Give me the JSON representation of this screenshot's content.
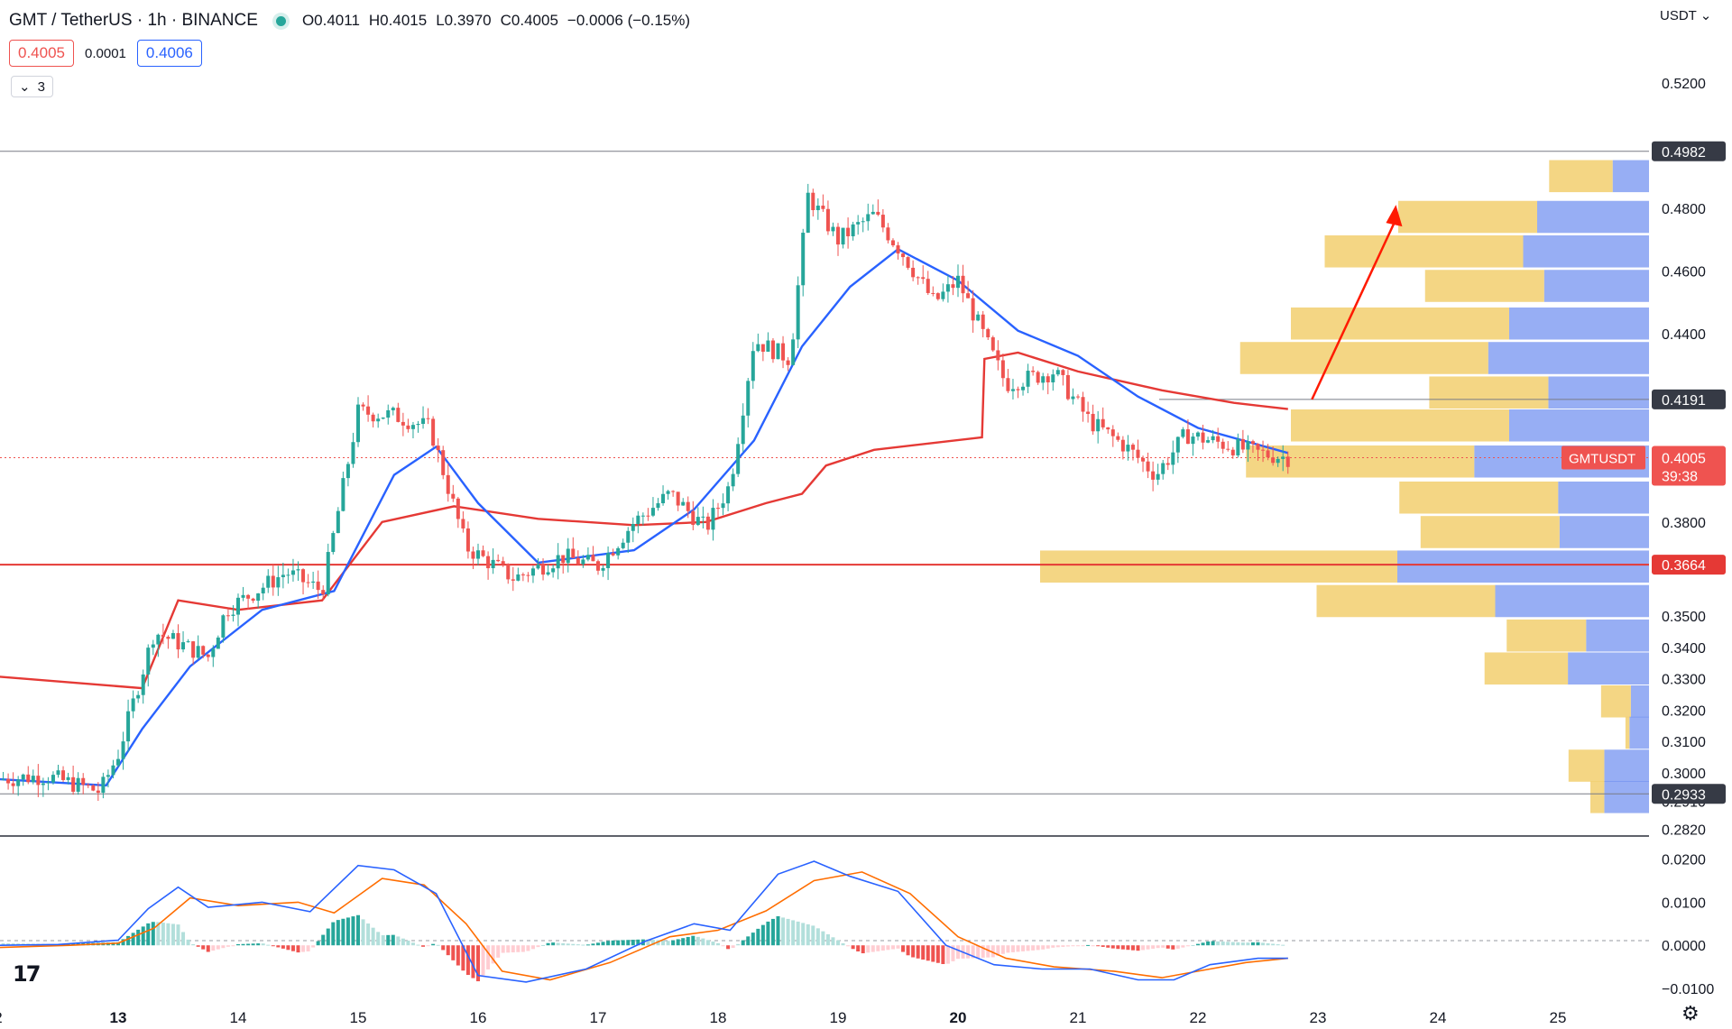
{
  "header": {
    "symbol": "GMT / TetherUS · 1h · BINANCE",
    "open": "O0.4011",
    "high": "H0.4015",
    "low": "L0.3970",
    "close": "C0.4005",
    "change": "−0.0006 (−0.15%)",
    "bid": "0.4005",
    "spread": "0.0001",
    "ask": "0.4006",
    "indicator_count": "3",
    "currency": "USDT"
  },
  "colors": {
    "up": "#26a69a",
    "down": "#ef5350",
    "ema_fast": "#2962ff",
    "ema_slow": "#e53935",
    "level": "#e53935",
    "macd": "#2962ff",
    "signal": "#ff6d00",
    "vp_up": "#6b8cf0",
    "vp_down": "#f2cf6e"
  },
  "badges": {
    "symbol_tag": "GMTUSDT",
    "countdown": "39:38"
  },
  "chart_data": [
    {
      "type": "candlestick",
      "title": "",
      "timeframe": "1h",
      "x_ticks": [
        "2",
        "13",
        "14",
        "15",
        "16",
        "17",
        "18",
        "19",
        "20",
        "21",
        "22",
        "23",
        "24",
        "25"
      ],
      "y_ticks": [
        "0.2820",
        "0.2910",
        "0.3000",
        "0.3100",
        "0.3200",
        "0.3300",
        "0.3400",
        "0.3500",
        "0.3800",
        "0.4400",
        "0.4600",
        "0.4800",
        "0.5200"
      ],
      "price_labels": [
        "0.4982",
        "0.4191",
        "0.3664",
        "0.2933"
      ],
      "last_price": "0.4005",
      "ylim": [
        0.279,
        0.52
      ],
      "horizontal_levels": [
        0.4982,
        0.4191,
        0.3664,
        0.2933
      ],
      "key_closes": [
        {
          "day": 12.0,
          "close": 0.298
        },
        {
          "day": 12.4,
          "close": 0.299
        },
        {
          "day": 12.85,
          "close": 0.294
        },
        {
          "day": 13.0,
          "close": 0.306
        },
        {
          "day": 13.3,
          "close": 0.345
        },
        {
          "day": 13.75,
          "close": 0.337
        },
        {
          "day": 13.9,
          "close": 0.352
        },
        {
          "day": 14.4,
          "close": 0.364
        },
        {
          "day": 14.7,
          "close": 0.358
        },
        {
          "day": 15.0,
          "close": 0.415
        },
        {
          "day": 15.3,
          "close": 0.414
        },
        {
          "day": 15.6,
          "close": 0.41
        },
        {
          "day": 15.9,
          "close": 0.372
        },
        {
          "day": 16.3,
          "close": 0.362
        },
        {
          "day": 16.7,
          "close": 0.369
        },
        {
          "day": 17.0,
          "close": 0.366
        },
        {
          "day": 17.3,
          "close": 0.38
        },
        {
          "day": 17.6,
          "close": 0.389
        },
        {
          "day": 17.9,
          "close": 0.378
        },
        {
          "day": 18.1,
          "close": 0.392
        },
        {
          "day": 18.3,
          "close": 0.438
        },
        {
          "day": 18.6,
          "close": 0.432
        },
        {
          "day": 18.75,
          "close": 0.484
        },
        {
          "day": 19.0,
          "close": 0.47
        },
        {
          "day": 19.3,
          "close": 0.478
        },
        {
          "day": 19.55,
          "close": 0.465
        },
        {
          "day": 19.8,
          "close": 0.45
        },
        {
          "day": 20.0,
          "close": 0.457
        },
        {
          "day": 20.4,
          "close": 0.424
        },
        {
          "day": 20.8,
          "close": 0.428
        },
        {
          "day": 21.1,
          "close": 0.412
        },
        {
          "day": 21.4,
          "close": 0.404
        },
        {
          "day": 21.65,
          "close": 0.395
        },
        {
          "day": 21.9,
          "close": 0.408
        },
        {
          "day": 22.1,
          "close": 0.406
        },
        {
          "day": 22.5,
          "close": 0.402
        },
        {
          "day": 22.75,
          "close": 0.4005
        }
      ],
      "ema_fast": [
        {
          "day": 12.0,
          "value": 0.298
        },
        {
          "day": 12.9,
          "value": 0.296
        },
        {
          "day": 13.2,
          "value": 0.314
        },
        {
          "day": 13.6,
          "value": 0.334
        },
        {
          "day": 14.2,
          "value": 0.352
        },
        {
          "day": 14.8,
          "value": 0.358
        },
        {
          "day": 15.3,
          "value": 0.395
        },
        {
          "day": 15.65,
          "value": 0.404
        },
        {
          "day": 16.0,
          "value": 0.386
        },
        {
          "day": 16.5,
          "value": 0.367
        },
        {
          "day": 17.3,
          "value": 0.371
        },
        {
          "day": 17.8,
          "value": 0.384
        },
        {
          "day": 18.3,
          "value": 0.406
        },
        {
          "day": 18.7,
          "value": 0.436
        },
        {
          "day": 19.1,
          "value": 0.455
        },
        {
          "day": 19.5,
          "value": 0.467
        },
        {
          "day": 20.0,
          "value": 0.457
        },
        {
          "day": 20.5,
          "value": 0.441
        },
        {
          "day": 21.0,
          "value": 0.433
        },
        {
          "day": 21.5,
          "value": 0.42
        },
        {
          "day": 22.0,
          "value": 0.41
        },
        {
          "day": 22.75,
          "value": 0.402
        }
      ],
      "ema_slow": [
        {
          "day": 11.9,
          "value": 0.331
        },
        {
          "day": 13.2,
          "value": 0.327
        },
        {
          "day": 13.5,
          "value": 0.355
        },
        {
          "day": 14.0,
          "value": 0.352
        },
        {
          "day": 14.7,
          "value": 0.355
        },
        {
          "day": 15.2,
          "value": 0.38
        },
        {
          "day": 15.8,
          "value": 0.385
        },
        {
          "day": 16.5,
          "value": 0.381
        },
        {
          "day": 17.3,
          "value": 0.379
        },
        {
          "day": 17.9,
          "value": 0.38
        },
        {
          "day": 18.4,
          "value": 0.386
        },
        {
          "day": 18.7,
          "value": 0.389
        },
        {
          "day": 18.9,
          "value": 0.398
        },
        {
          "day": 19.3,
          "value": 0.403
        },
        {
          "day": 20.2,
          "value": 0.407
        },
        {
          "day": 20.22,
          "value": 0.432
        },
        {
          "day": 20.5,
          "value": 0.434
        },
        {
          "day": 21.0,
          "value": 0.428
        },
        {
          "day": 21.7,
          "value": 0.422
        },
        {
          "day": 22.3,
          "value": 0.418
        },
        {
          "day": 22.75,
          "value": 0.416
        }
      ],
      "volume_profile": [
        {
          "price": 0.49,
          "buy": 0.32,
          "sell": 0.26
        },
        {
          "price": 0.477,
          "buy": 0.7,
          "sell": 0.8
        },
        {
          "price": 0.466,
          "buy": 1.0,
          "sell": 0.9
        },
        {
          "price": 0.455,
          "buy": 0.6,
          "sell": 0.75
        },
        {
          "price": 0.443,
          "buy": 1.1,
          "sell": 1.0
        },
        {
          "price": 0.432,
          "buy": 1.25,
          "sell": 1.15
        },
        {
          "price": 0.421,
          "buy": 0.6,
          "sell": 0.72
        },
        {
          "price": 0.4105,
          "buy": 1.1,
          "sell": 1.0
        },
        {
          "price": 0.399,
          "buy": 1.15,
          "sell": 1.25
        },
        {
          "price": 0.3875,
          "buy": 0.8,
          "sell": 0.65
        },
        {
          "price": 0.3765,
          "buy": 0.7,
          "sell": 0.64
        },
        {
          "price": 0.3655,
          "buy": 1.8,
          "sell": 1.8
        },
        {
          "price": 0.3545,
          "buy": 0.9,
          "sell": 1.1
        },
        {
          "price": 0.3435,
          "buy": 0.4,
          "sell": 0.45
        },
        {
          "price": 0.333,
          "buy": 0.42,
          "sell": 0.58
        },
        {
          "price": 0.3225,
          "buy": 0.15,
          "sell": 0.13
        },
        {
          "price": 0.3125,
          "buy": 0.02,
          "sell": 0.14
        },
        {
          "price": 0.302,
          "buy": 0.18,
          "sell": 0.32
        },
        {
          "price": 0.292,
          "buy": 0.07,
          "sell": 0.32
        }
      ],
      "projection_arrow": {
        "from_day": 22.95,
        "from_price": 0.4191,
        "to_day": 23.65,
        "to_price": 0.48
      }
    },
    {
      "type": "macd",
      "y_ticks": [
        "0.0200",
        "0.0100",
        "0.0000",
        "−0.0100"
      ],
      "ylim": [
        -0.0125,
        0.022
      ],
      "macd": [
        {
          "day": 12.0,
          "value": 0.0
        },
        {
          "day": 12.5,
          "value": 0.0002
        },
        {
          "day": 13.0,
          "value": 0.0012
        },
        {
          "day": 13.25,
          "value": 0.0085
        },
        {
          "day": 13.5,
          "value": 0.0135
        },
        {
          "day": 13.75,
          "value": 0.0088
        },
        {
          "day": 14.2,
          "value": 0.01
        },
        {
          "day": 14.6,
          "value": 0.0078
        },
        {
          "day": 15.0,
          "value": 0.0185
        },
        {
          "day": 15.3,
          "value": 0.0175
        },
        {
          "day": 15.65,
          "value": 0.012
        },
        {
          "day": 16.0,
          "value": -0.007
        },
        {
          "day": 16.4,
          "value": -0.0085
        },
        {
          "day": 16.9,
          "value": -0.0055
        },
        {
          "day": 17.4,
          "value": 0.001
        },
        {
          "day": 17.8,
          "value": 0.005
        },
        {
          "day": 18.1,
          "value": 0.0035
        },
        {
          "day": 18.5,
          "value": 0.0165
        },
        {
          "day": 18.8,
          "value": 0.0195
        },
        {
          "day": 19.1,
          "value": 0.016
        },
        {
          "day": 19.5,
          "value": 0.0125
        },
        {
          "day": 19.9,
          "value": 0.0
        },
        {
          "day": 20.3,
          "value": -0.0045
        },
        {
          "day": 20.7,
          "value": -0.0055
        },
        {
          "day": 21.1,
          "value": -0.0055
        },
        {
          "day": 21.5,
          "value": -0.008
        },
        {
          "day": 21.8,
          "value": -0.008
        },
        {
          "day": 22.1,
          "value": -0.0045
        },
        {
          "day": 22.5,
          "value": -0.003
        },
        {
          "day": 22.75,
          "value": -0.003
        }
      ],
      "signal": [
        {
          "day": 12.0,
          "value": -0.0005
        },
        {
          "day": 12.6,
          "value": 0.0
        },
        {
          "day": 13.0,
          "value": 0.0005
        },
        {
          "day": 13.3,
          "value": 0.004
        },
        {
          "day": 13.6,
          "value": 0.011
        },
        {
          "day": 14.0,
          "value": 0.0092
        },
        {
          "day": 14.5,
          "value": 0.01
        },
        {
          "day": 14.8,
          "value": 0.0075
        },
        {
          "day": 15.2,
          "value": 0.0155
        },
        {
          "day": 15.55,
          "value": 0.014
        },
        {
          "day": 15.9,
          "value": 0.005
        },
        {
          "day": 16.2,
          "value": -0.006
        },
        {
          "day": 16.6,
          "value": -0.008
        },
        {
          "day": 17.1,
          "value": -0.004
        },
        {
          "day": 17.6,
          "value": 0.002
        },
        {
          "day": 18.0,
          "value": 0.0035
        },
        {
          "day": 18.4,
          "value": 0.008
        },
        {
          "day": 18.8,
          "value": 0.015
        },
        {
          "day": 19.2,
          "value": 0.017
        },
        {
          "day": 19.6,
          "value": 0.012
        },
        {
          "day": 20.0,
          "value": 0.002
        },
        {
          "day": 20.4,
          "value": -0.003
        },
        {
          "day": 20.8,
          "value": -0.005
        },
        {
          "day": 21.3,
          "value": -0.006
        },
        {
          "day": 21.7,
          "value": -0.0075
        },
        {
          "day": 22.0,
          "value": -0.006
        },
        {
          "day": 22.4,
          "value": -0.004
        },
        {
          "day": 22.75,
          "value": -0.003
        }
      ]
    }
  ]
}
